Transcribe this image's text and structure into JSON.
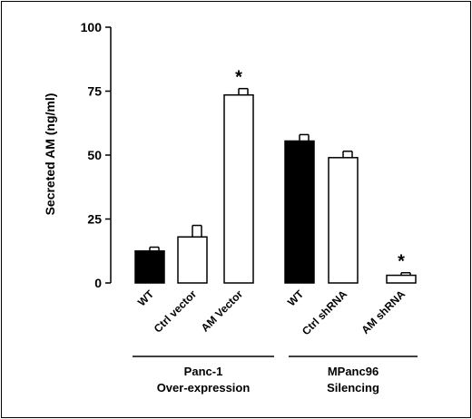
{
  "chart_data": {
    "type": "bar",
    "ylabel": "Secreted AM (ng/ml)",
    "ylim": [
      0,
      100
    ],
    "yticks": [
      0,
      25,
      50,
      75,
      100
    ],
    "categories": [
      "WT",
      "Ctrl vector",
      "AM Vector",
      "WT",
      "Ctrl shRNA",
      "AM shRNA"
    ],
    "values": [
      12.5,
      18,
      73.5,
      55.5,
      49,
      3
    ],
    "errors": [
      1.5,
      4.5,
      2.5,
      2.5,
      2.5,
      1
    ],
    "fills": [
      "#000000",
      "#ffffff",
      "#ffffff",
      "#000000",
      "#ffffff",
      "#ffffff"
    ],
    "significance": [
      "",
      "",
      "*",
      "",
      "",
      "*"
    ],
    "groups": [
      {
        "line1": "Panc-1",
        "line2": "Over-expression",
        "bars": [
          0,
          1,
          2
        ]
      },
      {
        "line1": "MPanc96",
        "line2": "Silencing",
        "bars": [
          3,
          4,
          5
        ]
      }
    ]
  }
}
